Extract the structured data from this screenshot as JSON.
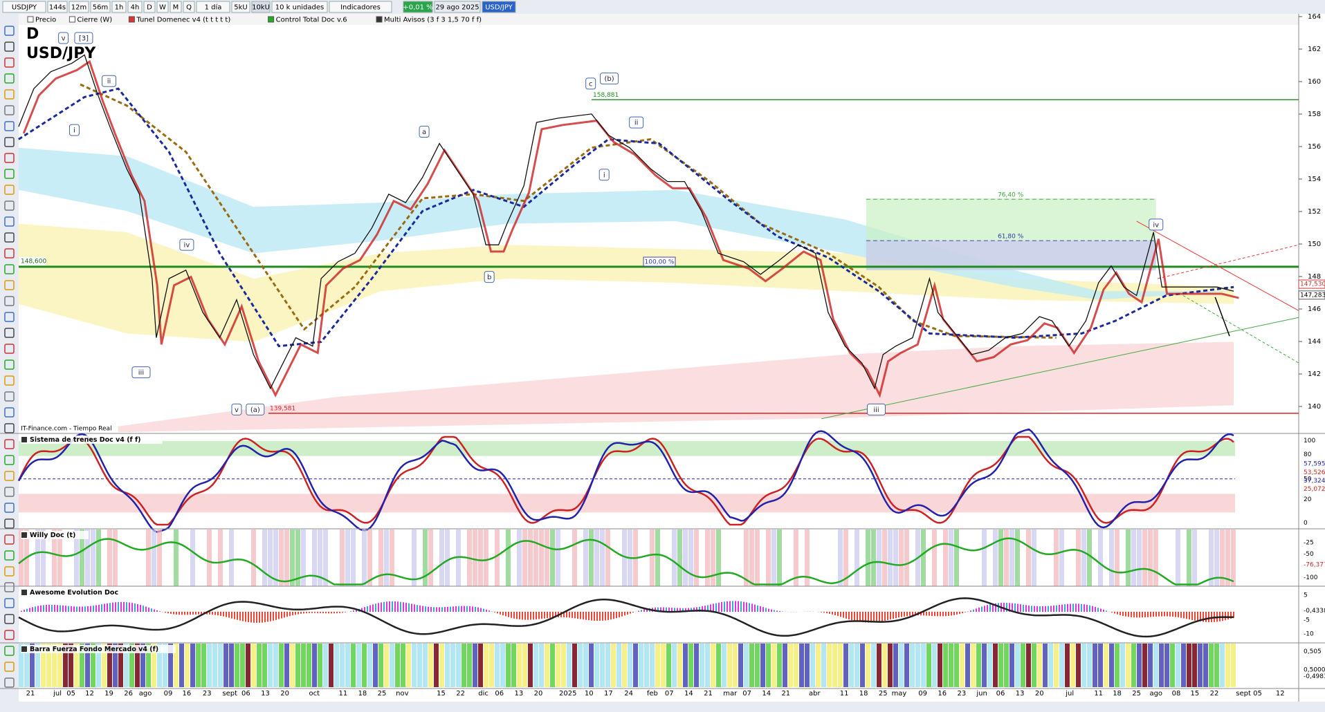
{
  "toolbar": {
    "symbol": "USDJPY",
    "timeframes": [
      "144s",
      "12m",
      "56m",
      "1h",
      "4h",
      "D",
      "W",
      "M",
      "Q"
    ],
    "period": "1 día",
    "units": [
      "5kU",
      "10kU"
    ],
    "units_menu": "10 k unidades",
    "indicators": "Indicadores",
    "change": "+0,01 %",
    "date": "29 ago 2025",
    "pair": "USD/JPY"
  },
  "legend": [
    "Precio",
    "Cierre (W)",
    "Tunel Domenec v4 (t t t t t)",
    "Control Total Doc v.6",
    "Multi Avisos (3 f 3 1,5 70 f f)"
  ],
  "main": {
    "timeframe": "D",
    "symbol": "USD/JPY",
    "source": "IT-Finance.com - Tiempo Real",
    "price_ticks": [
      164,
      162,
      160,
      158,
      156,
      154,
      152,
      150,
      148,
      146,
      144,
      142,
      140
    ],
    "last_prices": [
      "147,530",
      "147,283"
    ],
    "levels": [
      "148,600",
      "158,881",
      "139,581"
    ],
    "fib": [
      "100,00 %",
      "61,80 %",
      "76,40 %"
    ],
    "waves": [
      "v",
      "[3]",
      "ii",
      "i",
      "iv",
      "iii",
      "v",
      "(a)",
      "c",
      "(b)",
      "ii",
      "i",
      "a",
      "b",
      "iv",
      "iii"
    ]
  },
  "panels": [
    {
      "title": "Sistema de trenes Doc v4 (f f)",
      "ticks": [
        "100",
        "80",
        "50",
        "20",
        "0"
      ],
      "values": [
        "57,595",
        "53,526",
        "37,324",
        "25,072"
      ]
    },
    {
      "title": "Willy Doc (t)",
      "ticks": [
        "-25",
        "-50",
        "-76,377",
        "-100"
      ]
    },
    {
      "title": "Awesome Evolution Doc",
      "ticks": [
        "5",
        "-0,4338",
        "-5",
        "-10"
      ]
    },
    {
      "title": "Barra Fuerza Fondo Mercado v4 (f)",
      "ticks": [
        "0,505",
        "0,500000",
        "-0,4983"
      ]
    }
  ],
  "x_axis": [
    "21",
    "jul",
    "05",
    "12",
    "19",
    "26",
    "ago",
    "09",
    "16",
    "23",
    "sept",
    "06",
    "13",
    "20",
    "oct",
    "11",
    "18",
    "25",
    "nov",
    "15",
    "22",
    "dic",
    "06",
    "13",
    "20",
    "2025",
    "10",
    "17",
    "24",
    "feb",
    "07",
    "14",
    "21",
    "mar",
    "07",
    "14",
    "21",
    "abr",
    "11",
    "18",
    "25",
    "may",
    "09",
    "16",
    "23",
    "jun",
    "06",
    "13",
    "20",
    "jul",
    "11",
    "18",
    "25",
    "ago",
    "08",
    "15",
    "22",
    "sept 05",
    "12"
  ]
}
